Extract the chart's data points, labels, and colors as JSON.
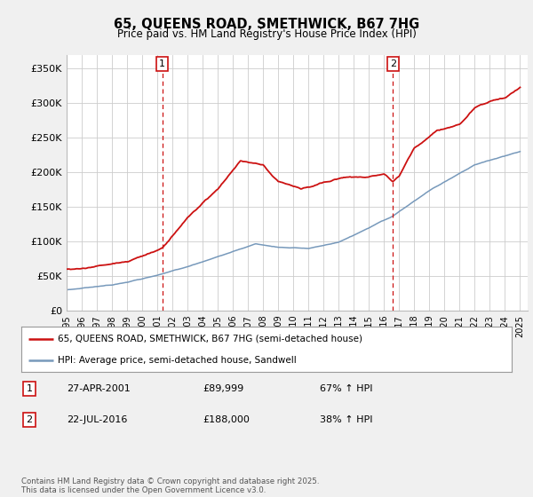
{
  "title": "65, QUEENS ROAD, SMETHWICK, B67 7HG",
  "subtitle": "Price paid vs. HM Land Registry's House Price Index (HPI)",
  "ylim": [
    0,
    370000
  ],
  "yticks": [
    0,
    50000,
    100000,
    150000,
    200000,
    250000,
    300000,
    350000
  ],
  "ytick_labels": [
    "£0",
    "£50K",
    "£100K",
    "£150K",
    "£200K",
    "£250K",
    "£300K",
    "£350K"
  ],
  "hpi_color": "#7799bb",
  "price_color": "#cc1111",
  "marker1_x": 2001.33,
  "marker2_x": 2016.58,
  "marker1_date_str": "27-APR-2001",
  "marker1_price": "£89,999",
  "marker1_pct": "67% ↑ HPI",
  "marker2_date_str": "22-JUL-2016",
  "marker2_price": "£188,000",
  "marker2_pct": "38% ↑ HPI",
  "legend_line1": "65, QUEENS ROAD, SMETHWICK, B67 7HG (semi-detached house)",
  "legend_line2": "HPI: Average price, semi-detached house, Sandwell",
  "footnote": "Contains HM Land Registry data © Crown copyright and database right 2025.\nThis data is licensed under the Open Government Licence v3.0.",
  "bg_color": "#f0f0f0",
  "plot_bg_color": "#ffffff",
  "grid_color": "#cccccc"
}
